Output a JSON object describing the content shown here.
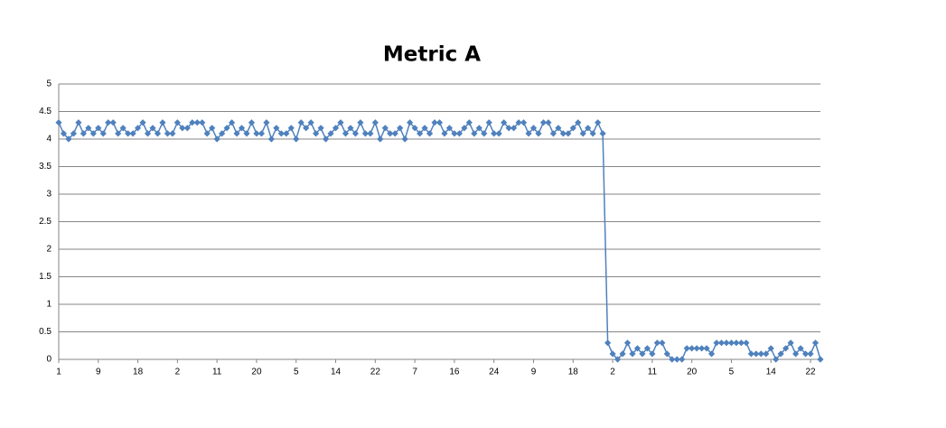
{
  "chart_data": {
    "type": "line",
    "title": "Metric A",
    "categories": [
      "1",
      null,
      null,
      null,
      null,
      null,
      null,
      null,
      "9",
      null,
      null,
      null,
      null,
      null,
      null,
      null,
      "18",
      null,
      null,
      null,
      null,
      null,
      null,
      null,
      "2",
      null,
      null,
      null,
      null,
      null,
      null,
      null,
      "11",
      null,
      null,
      null,
      null,
      null,
      null,
      null,
      "20",
      null,
      null,
      null,
      null,
      null,
      null,
      null,
      "5",
      null,
      null,
      null,
      null,
      null,
      null,
      null,
      "14",
      null,
      null,
      null,
      null,
      null,
      null,
      null,
      "22",
      null,
      null,
      null,
      null,
      null,
      null,
      null,
      "7",
      null,
      null,
      null,
      null,
      null,
      null,
      null,
      "16",
      null,
      null,
      null,
      null,
      null,
      null,
      null,
      "24",
      null,
      null,
      null,
      null,
      null,
      null,
      null,
      "9",
      null,
      null,
      null,
      null,
      null,
      null,
      null,
      "18",
      null,
      null,
      null,
      null,
      null,
      null,
      null,
      "2",
      null,
      null,
      null,
      null,
      null,
      null,
      null,
      "11",
      null,
      null,
      null,
      null,
      null,
      null,
      null,
      "20",
      null,
      null,
      null,
      null,
      null,
      null,
      null,
      "5",
      null,
      null,
      null,
      null,
      null,
      null,
      null,
      "14",
      null,
      null,
      null,
      null,
      null,
      null,
      null,
      "22",
      null,
      null
    ],
    "series": [
      {
        "color": "#4f81bd",
        "values": [
          4.3,
          4.1,
          4.0,
          4.1,
          4.3,
          4.1,
          4.2,
          4.1,
          4.2,
          4.1,
          4.3,
          4.3,
          4.1,
          4.2,
          4.1,
          4.1,
          4.2,
          4.3,
          4.1,
          4.2,
          4.1,
          4.3,
          4.1,
          4.1,
          4.3,
          4.2,
          4.2,
          4.3,
          4.3,
          4.3,
          4.1,
          4.2,
          4.0,
          4.1,
          4.2,
          4.3,
          4.1,
          4.2,
          4.1,
          4.3,
          4.1,
          4.1,
          4.3,
          4.0,
          4.2,
          4.1,
          4.1,
          4.2,
          4.0,
          4.3,
          4.2,
          4.3,
          4.1,
          4.2,
          4.0,
          4.1,
          4.2,
          4.3,
          4.1,
          4.2,
          4.1,
          4.3,
          4.1,
          4.1,
          4.3,
          4.0,
          4.2,
          4.1,
          4.1,
          4.2,
          4.0,
          4.3,
          4.2,
          4.1,
          4.2,
          4.1,
          4.3,
          4.3,
          4.1,
          4.2,
          4.1,
          4.1,
          4.2,
          4.3,
          4.1,
          4.2,
          4.1,
          4.3,
          4.1,
          4.1,
          4.3,
          4.2,
          4.2,
          4.3,
          4.3,
          4.1,
          4.2,
          4.1,
          4.3,
          4.3,
          4.1,
          4.2,
          4.1,
          4.1,
          4.2,
          4.3,
          4.1,
          4.2,
          4.1,
          4.3,
          4.1,
          0.3,
          0.1,
          0,
          0.1,
          0.3,
          0.1,
          0.2,
          0.1,
          0.2,
          0.1,
          0.3,
          0.3,
          0.1,
          0,
          0,
          0,
          0.2,
          0.2,
          0.2,
          0.2,
          0.2,
          0.1,
          0.3,
          0.3,
          0.3,
          0.3,
          0.3,
          0.3,
          0.3,
          0.1,
          0.1,
          0.1,
          0.1,
          0.2,
          0,
          0.1,
          0.2,
          0.3,
          0.1,
          0.2,
          0.1,
          0.1,
          0.3,
          0
        ]
      }
    ],
    "ylim": [
      0,
      5
    ],
    "yticks": [
      0,
      0.5,
      1,
      1.5,
      2,
      2.5,
      3,
      3.5,
      4,
      4.5,
      5
    ],
    "grid": true
  }
}
